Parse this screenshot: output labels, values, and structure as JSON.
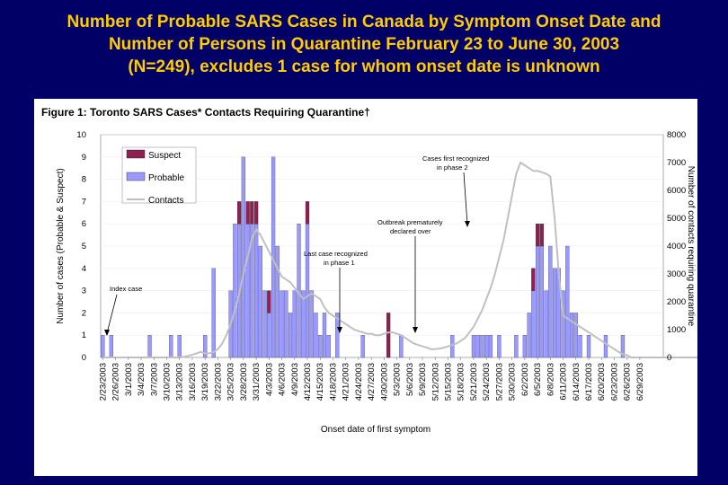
{
  "slide": {
    "title_lines": [
      "Number of Probable SARS Cases in Canada by Symptom Onset Date and",
      "Number of Persons in Quarantine February 23 to June 30, 2003",
      "(N=249), excludes 1 case for whom onset date is unknown"
    ]
  },
  "colors": {
    "background": "#000066",
    "title": "#FFCC00",
    "suspect": "#8B2252",
    "probable": "#9999FF",
    "contacts": "#C0C0C0"
  },
  "chart_data": {
    "type": "bar",
    "title": "Figure 1: Toronto SARS Cases* Contacts Requiring Quarantine†",
    "xlabel": "Onset date of first symptom",
    "ylabel": "Number of cases (Probable & Suspect)",
    "ylabel_right": "Number of contacts requiring quarantine",
    "ylim": [
      0,
      10
    ],
    "ylim_right": [
      0,
      8000
    ],
    "yticks": [
      0,
      1,
      2,
      3,
      4,
      5,
      6,
      7,
      8,
      9,
      10
    ],
    "yticks_right": [
      0,
      1000,
      2000,
      3000,
      4000,
      5000,
      6000,
      7000,
      8000
    ],
    "stacked": true,
    "x_start": "2003-02-23",
    "x_tick_labels": [
      "2/23/2003",
      "2/26/2003",
      "3/1/2003",
      "3/4/2003",
      "3/7/2003",
      "3/10/2003",
      "3/13/2003",
      "3/16/2003",
      "3/19/2003",
      "3/22/2003",
      "3/25/2003",
      "3/28/2003",
      "3/31/2003",
      "4/3/2003",
      "4/6/2003",
      "4/9/2003",
      "4/12/2003",
      "4/15/2003",
      "4/18/2003",
      "4/21/2003",
      "4/24/2003",
      "4/27/2003",
      "4/30/2003",
      "5/3/2003",
      "5/6/2003",
      "5/9/2003",
      "5/12/2003",
      "5/15/2003",
      "5/18/2003",
      "5/21/2003",
      "5/24/2003",
      "5/27/2003",
      "5/30/2003",
      "6/2/2003",
      "6/5/2003",
      "6/8/2003",
      "6/11/2003",
      "6/14/2003",
      "6/17/2003",
      "6/20/2003",
      "6/23/2003",
      "6/26/2003",
      "6/29/2003"
    ],
    "legend": [
      "Suspect",
      "Probable",
      "Contacts"
    ],
    "legend_position": "top-left",
    "series": [
      {
        "name": "Probable",
        "values": [
          1,
          0,
          1,
          0,
          0,
          0,
          0,
          0,
          0,
          0,
          0,
          1,
          0,
          0,
          0,
          0,
          1,
          0,
          1,
          0,
          0,
          0,
          0,
          0,
          1,
          0,
          4,
          0,
          0,
          0,
          3,
          6,
          6,
          9,
          6,
          6,
          6,
          5,
          3,
          2,
          9,
          5,
          3,
          3,
          2,
          3,
          6,
          3,
          6,
          3,
          2,
          1,
          2,
          1,
          0,
          2,
          0,
          0,
          0,
          0,
          0,
          1,
          0,
          0,
          0,
          0,
          0,
          0,
          0,
          0,
          1,
          0,
          0,
          0,
          0,
          0,
          0,
          0,
          0,
          0,
          0,
          0,
          1,
          0,
          0,
          0,
          0,
          1,
          1,
          1,
          1,
          1,
          0,
          1,
          0,
          0,
          0,
          1,
          0,
          1,
          2,
          3,
          5,
          5,
          3,
          5,
          4,
          4,
          3,
          5,
          2,
          2,
          1,
          0,
          1,
          0,
          0,
          0,
          1,
          0,
          0,
          0,
          1,
          0,
          0,
          0,
          0,
          0,
          0,
          0,
          0,
          0
        ]
      },
      {
        "name": "Suspect",
        "values": [
          0,
          0,
          0,
          0,
          0,
          0,
          0,
          0,
          0,
          0,
          0,
          0,
          0,
          0,
          0,
          0,
          0,
          0,
          0,
          0,
          0,
          0,
          0,
          0,
          0,
          0,
          0,
          0,
          0,
          0,
          0,
          0,
          1,
          0,
          1,
          1,
          1,
          0,
          0,
          1,
          0,
          0,
          0,
          0,
          0,
          0,
          0,
          0,
          1,
          0,
          0,
          0,
          0,
          0,
          0,
          0,
          0,
          0,
          0,
          0,
          0,
          0,
          0,
          0,
          0,
          0,
          0,
          2,
          0,
          0,
          0,
          0,
          0,
          0,
          0,
          0,
          0,
          0,
          0,
          0,
          0,
          0,
          0,
          0,
          0,
          0,
          0,
          0,
          0,
          0,
          0,
          0,
          0,
          0,
          0,
          0,
          0,
          0,
          0,
          0,
          0,
          1,
          1,
          1,
          0,
          0,
          0,
          0,
          0,
          0,
          0,
          0,
          0,
          0,
          0,
          0,
          0,
          0,
          0,
          0,
          0,
          0,
          0,
          0,
          0,
          0,
          0,
          0,
          0,
          0,
          0
        ]
      },
      {
        "name": "Contacts",
        "values": [
          0,
          0,
          0,
          0,
          0,
          0,
          0,
          0,
          0,
          0,
          0,
          0,
          0,
          0,
          0,
          0,
          0,
          0,
          0,
          20,
          50,
          100,
          150,
          200,
          150,
          150,
          200,
          300,
          500,
          800,
          1200,
          1700,
          2300,
          3000,
          3600,
          4300,
          4600,
          4400,
          4100,
          3800,
          3500,
          3200,
          2900,
          2800,
          2700,
          2500,
          2300,
          2100,
          2200,
          2300,
          2200,
          2100,
          1800,
          1600,
          1500,
          1400,
          1300,
          1200,
          1100,
          1000,
          950,
          900,
          850,
          850,
          800,
          800,
          850,
          900,
          900,
          850,
          800,
          700,
          600,
          500,
          450,
          400,
          350,
          300,
          300,
          320,
          350,
          400,
          450,
          500,
          600,
          700,
          900,
          1100,
          1400,
          1700,
          2100,
          2500,
          3000,
          3600,
          4200,
          5000,
          5800,
          6600,
          7000,
          6900,
          6800,
          6700,
          6700,
          6650,
          6600,
          6500,
          5000,
          3000,
          1500,
          1400,
          1300,
          1200,
          1100,
          1000,
          900,
          800,
          700,
          600,
          500,
          400,
          300,
          200,
          120,
          80,
          0,
          0,
          0,
          0,
          0,
          0,
          0,
          0,
          0,
          0,
          0,
          0,
          0,
          0,
          0,
          0,
          0,
          0
        ]
      }
    ],
    "annotations": [
      {
        "label": "Index case",
        "date": "2003-02-23"
      },
      {
        "label": "Outbreak prematurely declared over",
        "date": "2003-05-16"
      },
      {
        "label": "Cases first recognized in phase 2",
        "date": "2003-05-23"
      },
      {
        "label": "Last case recognized in phase 1",
        "date": "2003-04-20"
      }
    ]
  }
}
